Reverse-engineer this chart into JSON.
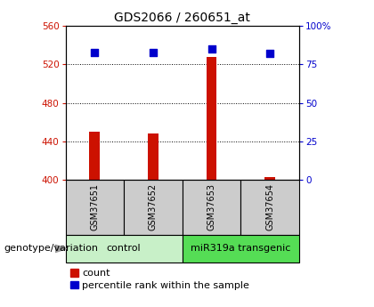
{
  "title": "GDS2066 / 260651_at",
  "samples": [
    "GSM37651",
    "GSM37652",
    "GSM37653",
    "GSM37654"
  ],
  "counts": [
    450,
    448,
    528,
    403
  ],
  "percentiles": [
    83,
    83,
    85,
    82
  ],
  "ylim_left": [
    400,
    560
  ],
  "ylim_right": [
    0,
    100
  ],
  "yticks_left": [
    400,
    440,
    480,
    520,
    560
  ],
  "yticks_right": [
    0,
    25,
    50,
    75,
    100
  ],
  "bar_color": "#cc1100",
  "dot_color": "#0000cc",
  "groups": [
    {
      "label": "control",
      "samples": [
        0,
        1
      ],
      "color": "#c8f0c8"
    },
    {
      "label": "miR319a transgenic",
      "samples": [
        2,
        3
      ],
      "color": "#55dd55"
    }
  ],
  "sample_box_color": "#cccccc",
  "bar_width": 0.18,
  "dot_size": 30,
  "title_fontsize": 10,
  "tick_fontsize": 7.5,
  "sample_fontsize": 7,
  "group_fontsize": 8,
  "legend_fontsize": 8,
  "genotype_fontsize": 8
}
